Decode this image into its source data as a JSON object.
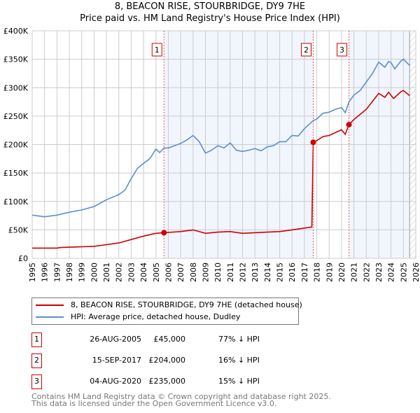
{
  "chart_data": {
    "type": "line",
    "title": "8, BEACON RISE, STOURBRIDGE, DY9 7HE",
    "subtitle": "Price paid vs. HM Land Registry's House Price Index (HPI)",
    "xlim": [
      1995,
      2026
    ],
    "ylim": [
      0,
      400000
    ],
    "x_ticks": [
      "1995",
      "1996",
      "1997",
      "1998",
      "1999",
      "2000",
      "2001",
      "2002",
      "2003",
      "2004",
      "2005",
      "2006",
      "2007",
      "2008",
      "2009",
      "2010",
      "2011",
      "2012",
      "2013",
      "2014",
      "2015",
      "2016",
      "2017",
      "2018",
      "2019",
      "2020",
      "2021",
      "2022",
      "2023",
      "2024",
      "2025",
      "2026"
    ],
    "y_ticks": [
      {
        "v": 0,
        "label": "£0"
      },
      {
        "v": 50000,
        "label": "£50K"
      },
      {
        "v": 100000,
        "label": "£100K"
      },
      {
        "v": 150000,
        "label": "£150K"
      },
      {
        "v": 200000,
        "label": "£200K"
      },
      {
        "v": 250000,
        "label": "£250K"
      },
      {
        "v": 300000,
        "label": "£300K"
      },
      {
        "v": 350000,
        "label": "£350K"
      },
      {
        "v": 400000,
        "label": "£400K"
      }
    ],
    "grid": true,
    "series": [
      {
        "name": "8, BEACON RISE, STOURBRIDGE, DY9 7HE (detached house)",
        "color": "#cc0000",
        "x": [
          1995,
          1997,
          1997.3,
          1998.5,
          2000,
          2001,
          2002,
          2003,
          2004,
          2005,
          2005.65,
          2007,
          2008,
          2009,
          2010,
          2011,
          2012,
          2013,
          2014,
          2015,
          2016,
          2017.6,
          2017.71,
          2018,
          2018.5,
          2019,
          2020,
          2020.3,
          2020.6,
          2021,
          2022,
          2023,
          2023.5,
          2023.8,
          2024.2,
          2024.8,
          2025,
          2025.5
        ],
        "y": [
          18000,
          18000,
          19000,
          20000,
          21000,
          24000,
          27000,
          33000,
          39000,
          44000,
          45000,
          47000,
          50000,
          44000,
          46000,
          47000,
          44000,
          45000,
          46000,
          47000,
          50000,
          55000,
          204000,
          207000,
          214000,
          216000,
          226000,
          218000,
          235000,
          244000,
          262000,
          290000,
          283000,
          292000,
          281000,
          293000,
          295000,
          286000
        ]
      },
      {
        "name": "HPI: Average price, detached house, Dudley",
        "color": "#5b8fd0",
        "x": [
          1995,
          1996,
          1997,
          1998,
          1999,
          2000,
          2001,
          2002,
          2002.5,
          2003,
          2003.5,
          2004,
          2004.5,
          2005,
          2005.3,
          2005.65,
          2006,
          2007,
          2007.5,
          2008,
          2008.5,
          2009,
          2009.5,
          2010,
          2010.5,
          2011,
          2011.5,
          2012,
          2012.5,
          2013,
          2013.5,
          2014,
          2014.5,
          2015,
          2015.5,
          2016,
          2016.5,
          2017,
          2017.7,
          2018,
          2018.5,
          2019,
          2019.5,
          2020,
          2020.3,
          2020.6,
          2021,
          2021.5,
          2022,
          2022.5,
          2023,
          2023.5,
          2023.8,
          2024,
          2024.3,
          2024.8,
          2025,
          2025.5
        ],
        "y": [
          76000,
          73000,
          76000,
          81000,
          85000,
          91000,
          103000,
          112000,
          120000,
          140000,
          158000,
          167000,
          175000,
          192000,
          186000,
          194000,
          194000,
          202000,
          208000,
          216000,
          205000,
          185000,
          190000,
          198000,
          194000,
          203000,
          190000,
          188000,
          190000,
          193000,
          189000,
          196000,
          198000,
          205000,
          205000,
          216000,
          215000,
          228000,
          242000,
          245000,
          255000,
          257000,
          262000,
          265000,
          256000,
          275000,
          287000,
          295000,
          310000,
          325000,
          345000,
          336000,
          346000,
          344000,
          333000,
          347000,
          350000,
          339000
        ]
      }
    ],
    "sales": [
      {
        "n": "1",
        "x": 2005.65,
        "y": 45000,
        "date": "26-AUG-2005",
        "price": "£45,000",
        "hpi": "77% ↓ HPI"
      },
      {
        "n": "2",
        "x": 2017.71,
        "y": 204000,
        "date": "15-SEP-2017",
        "price": "£204,000",
        "hpi": "16% ↓ HPI"
      },
      {
        "n": "3",
        "x": 2020.6,
        "y": 235000,
        "date": "04-AUG-2020",
        "price": "£235,000",
        "hpi": "15% ↓ HPI"
      }
    ],
    "forecast_from": 2025.5
  },
  "footer": {
    "line1": "Contains HM Land Registry data © Crown copyright and database right 2025.",
    "line2": "This data is licensed under the Open Government Licence v3.0."
  }
}
